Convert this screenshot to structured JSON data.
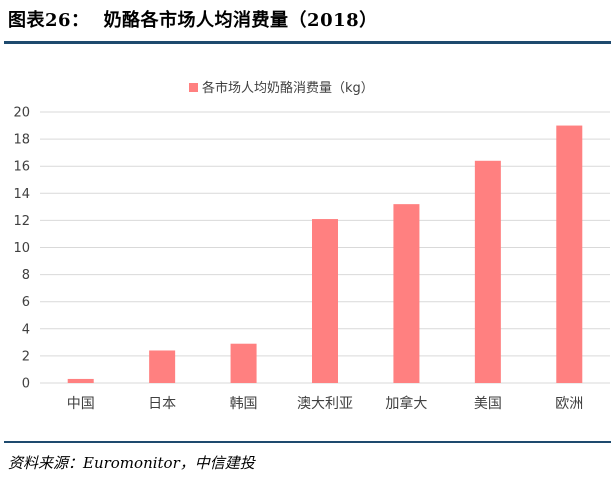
{
  "figure": {
    "label": "图表26：",
    "title": "奶酪各市场人均消费量（2018）",
    "source": "资料来源：Euromonitor，中信建投"
  },
  "chart_data": {
    "type": "bar",
    "legend": "各市场人均奶酪消费量（kg）",
    "legend_position": "top",
    "categories": [
      "中国",
      "日本",
      "韩国",
      "澳大利亚",
      "加拿大",
      "美国",
      "欧洲"
    ],
    "values": [
      0.3,
      2.4,
      2.9,
      12.1,
      13.2,
      16.4,
      19.0
    ],
    "ylim": [
      0,
      20
    ],
    "yticks": [
      0,
      2,
      4,
      6,
      8,
      10,
      12,
      14,
      16,
      18,
      20
    ],
    "grid": true,
    "bar_color": "#ff8080",
    "grid_color": "#d9d9d9"
  }
}
